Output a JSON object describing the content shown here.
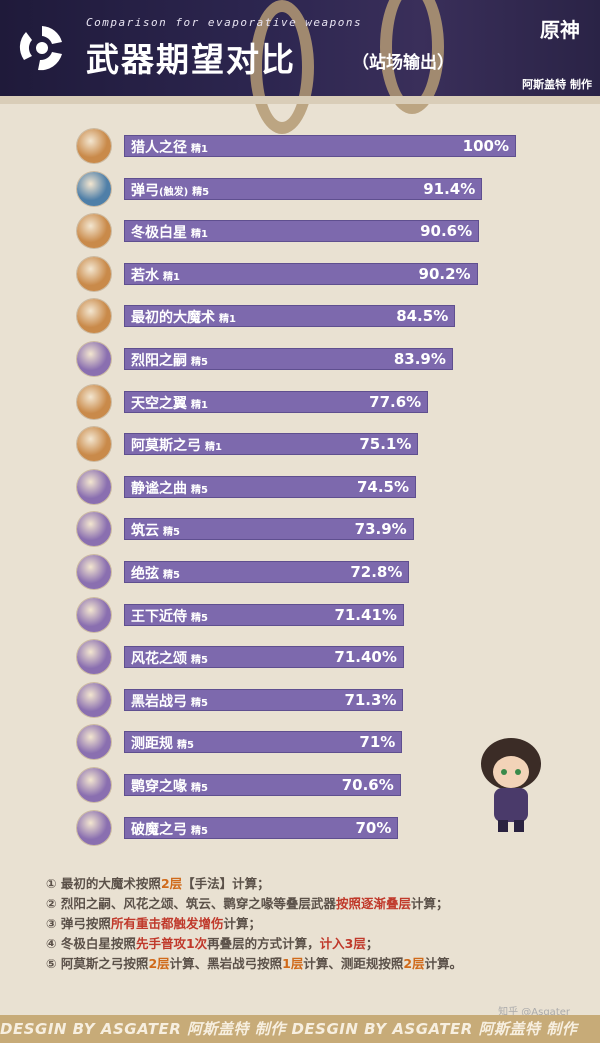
{
  "header": {
    "subtitle": "Comparison for evaporative weapons",
    "title": "武器期望对比",
    "title_suffix": "（站场输出）",
    "game_logo": "原神",
    "author": "阿斯盖特 制作"
  },
  "chart_data": {
    "type": "bar",
    "orientation": "horizontal",
    "categories": [
      "猎人之径",
      "弹弓",
      "冬极白星",
      "若水",
      "最初的大魔术",
      "烈阳之嗣",
      "天空之翼",
      "阿莫斯之弓",
      "静谧之曲",
      "筑云",
      "绝弦",
      "王下近侍",
      "风花之颂",
      "黑岩战弓",
      "测距规",
      "鹮穿之喙",
      "破魔之弓"
    ],
    "category_notes": [
      "",
      "(触发)",
      "",
      "",
      "",
      "",
      "",
      "",
      "",
      "",
      "",
      "",
      "",
      "",
      "",
      "",
      ""
    ],
    "refinements": [
      "精1",
      "精5",
      "精1",
      "精1",
      "精1",
      "精5",
      "精1",
      "精1",
      "精5",
      "精5",
      "精5",
      "精5",
      "精5",
      "精5",
      "精5",
      "精5",
      "精5"
    ],
    "values": [
      100,
      91.4,
      90.6,
      90.2,
      84.5,
      83.9,
      77.6,
      75.1,
      74.5,
      73.9,
      72.8,
      71.41,
      71.4,
      71.3,
      71,
      70.6,
      70
    ],
    "value_labels": [
      "100%",
      "91.4%",
      "90.6%",
      "90.2%",
      "84.5%",
      "83.9%",
      "77.6%",
      "75.1%",
      "74.5%",
      "73.9%",
      "72.8%",
      "71.41%",
      "71.40%",
      "71.3%",
      "71%",
      "70.6%",
      "70%"
    ],
    "icon_colors": [
      "#c98a4a",
      "#4f7fa8",
      "#c98a4a",
      "#c98a4a",
      "#c98a4a",
      "#8a6fb0",
      "#c98a4a",
      "#c98a4a",
      "#8a6fb0",
      "#8a6fb0",
      "#8a6fb0",
      "#8a6fb0",
      "#8a6fb0",
      "#8a6fb0",
      "#8a6fb0",
      "#8a6fb0",
      "#8a6fb0"
    ],
    "bar_color": "#7d69ad",
    "xlim": [
      0,
      100
    ],
    "grid": false
  },
  "notes": [
    [
      [
        "① 最初的大魔术按照",
        ""
      ],
      [
        "2层",
        "o"
      ],
      [
        "【手法】计算；",
        ""
      ]
    ],
    [
      [
        "② 烈阳之嗣、风花之颂、筑云、鹮穿之喙等叠层武器",
        ""
      ],
      [
        "按照逐渐叠层",
        "r"
      ],
      [
        "计算；",
        ""
      ]
    ],
    [
      [
        "③ 弹弓按照",
        ""
      ],
      [
        "所有重击都触发增伤",
        "r"
      ],
      [
        "计算；",
        ""
      ]
    ],
    [
      [
        "④ 冬极白星按照",
        ""
      ],
      [
        "先手普攻1次",
        "r"
      ],
      [
        "再叠层的方式计算，",
        ""
      ],
      [
        "计入3层",
        "r"
      ],
      [
        "；",
        ""
      ]
    ],
    [
      [
        "⑤ 阿莫斯之弓按照",
        ""
      ],
      [
        "2层",
        "o"
      ],
      [
        "计算、黑岩战弓按照",
        ""
      ],
      [
        "1层",
        "o"
      ],
      [
        "计算、测距规按照",
        ""
      ],
      [
        "2层",
        "o"
      ],
      [
        "计算。",
        ""
      ]
    ]
  ],
  "footer": "DESGIN BY ASGATER  阿斯盖特 制作   DESGIN BY ASGATER  阿斯盖特 制作",
  "watermark": "知乎 @Asgater"
}
